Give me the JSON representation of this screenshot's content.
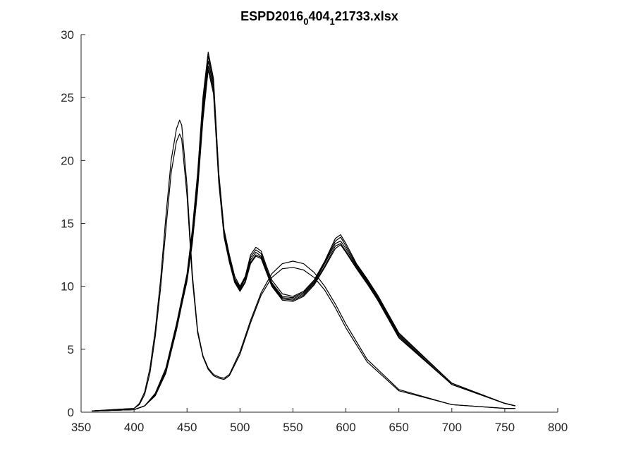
{
  "chart_data": {
    "type": "line",
    "title": {
      "parts": [
        {
          "text": "ESPD2016",
          "sub": false
        },
        {
          "text": "0",
          "sub": true
        },
        {
          "text": "404",
          "sub": false
        },
        {
          "text": "1",
          "sub": true
        },
        {
          "text": "21733.xlsx",
          "sub": false
        }
      ]
    },
    "xlim": [
      350,
      800
    ],
    "ylim": [
      0,
      30
    ],
    "xticks": [
      350,
      400,
      450,
      500,
      550,
      600,
      650,
      700,
      750,
      800
    ],
    "yticks": [
      0,
      5,
      10,
      15,
      20,
      25,
      30
    ],
    "xtick_labels": [
      "350",
      "400",
      "450",
      "500",
      "550",
      "600",
      "650",
      "700",
      "750",
      "800"
    ],
    "ytick_labels": [
      "0",
      "5",
      "10",
      "15",
      "20",
      "25",
      "30"
    ],
    "grid": false,
    "line_color": "#000000",
    "series": [
      {
        "x": [
          360,
          400,
          410,
          420,
          430,
          440,
          445,
          450,
          455,
          460,
          465,
          470,
          475,
          480,
          485,
          490,
          495,
          500,
          505,
          510,
          515,
          520,
          525,
          530,
          540,
          550,
          560,
          570,
          580,
          590,
          595,
          600,
          610,
          620,
          630,
          650,
          700,
          750,
          760
        ],
        "y": [
          0.1,
          0.2,
          0.5,
          1.5,
          3.5,
          7.0,
          9.0,
          11.0,
          14.5,
          19.0,
          25.0,
          28.6,
          26.5,
          19.0,
          14.5,
          12.5,
          10.8,
          10.0,
          10.8,
          12.5,
          13.1,
          12.8,
          11.6,
          10.5,
          9.4,
          9.2,
          9.6,
          10.5,
          12.0,
          13.8,
          14.1,
          13.4,
          11.8,
          10.6,
          9.3,
          6.3,
          2.3,
          0.7,
          0.5
        ]
      },
      {
        "x": [
          360,
          400,
          410,
          420,
          430,
          440,
          445,
          450,
          455,
          460,
          465,
          470,
          475,
          480,
          485,
          490,
          495,
          500,
          505,
          510,
          515,
          520,
          525,
          530,
          540,
          550,
          560,
          570,
          580,
          590,
          595,
          600,
          610,
          620,
          630,
          650,
          700,
          750,
          760
        ],
        "y": [
          0.1,
          0.2,
          0.5,
          1.4,
          3.3,
          6.8,
          8.8,
          10.8,
          14.0,
          18.5,
          24.5,
          28.3,
          26.2,
          18.8,
          14.3,
          12.3,
          10.6,
          9.9,
          10.7,
          12.3,
          12.9,
          12.6,
          11.4,
          10.3,
          9.2,
          9.1,
          9.5,
          10.4,
          11.9,
          13.6,
          13.9,
          13.2,
          11.7,
          10.5,
          9.2,
          6.2,
          2.3,
          0.7,
          0.5
        ]
      },
      {
        "x": [
          360,
          400,
          410,
          420,
          430,
          440,
          445,
          450,
          455,
          460,
          465,
          470,
          475,
          480,
          485,
          490,
          495,
          500,
          505,
          510,
          515,
          520,
          525,
          530,
          540,
          550,
          560,
          570,
          580,
          590,
          595,
          600,
          610,
          620,
          630,
          650,
          700,
          750,
          760
        ],
        "y": [
          0.1,
          0.2,
          0.5,
          1.4,
          3.3,
          6.7,
          8.7,
          10.6,
          13.8,
          18.2,
          24.0,
          27.9,
          25.9,
          18.6,
          14.2,
          12.2,
          10.5,
          9.8,
          10.6,
          12.1,
          12.7,
          12.4,
          11.3,
          10.2,
          9.1,
          9.0,
          9.4,
          10.3,
          11.8,
          13.4,
          13.6,
          13.0,
          11.6,
          10.4,
          9.1,
          6.1,
          2.2,
          0.7,
          0.5
        ]
      },
      {
        "x": [
          360,
          400,
          410,
          420,
          430,
          440,
          445,
          450,
          455,
          460,
          465,
          470,
          475,
          480,
          485,
          490,
          495,
          500,
          505,
          510,
          515,
          520,
          525,
          530,
          540,
          550,
          560,
          570,
          580,
          590,
          595,
          600,
          610,
          620,
          630,
          650,
          700,
          750,
          760
        ],
        "y": [
          0.1,
          0.2,
          0.5,
          1.4,
          3.2,
          6.6,
          8.6,
          10.5,
          13.6,
          17.9,
          23.6,
          27.5,
          25.6,
          18.4,
          14.0,
          12.0,
          10.4,
          9.7,
          10.4,
          11.9,
          12.5,
          12.3,
          11.2,
          10.1,
          9.0,
          8.9,
          9.3,
          10.2,
          11.6,
          13.2,
          13.4,
          12.8,
          11.5,
          10.3,
          9.0,
          6.0,
          2.2,
          0.7,
          0.5
        ]
      },
      {
        "x": [
          360,
          400,
          410,
          420,
          430,
          440,
          445,
          450,
          455,
          460,
          465,
          470,
          475,
          480,
          485,
          490,
          495,
          500,
          505,
          510,
          515,
          520,
          525,
          530,
          540,
          550,
          560,
          570,
          580,
          590,
          595,
          600,
          610,
          620,
          630,
          650,
          700,
          750,
          760
        ],
        "y": [
          0.1,
          0.2,
          0.5,
          1.3,
          3.1,
          6.5,
          8.5,
          10.4,
          13.4,
          17.6,
          23.2,
          27.2,
          25.3,
          18.2,
          13.9,
          11.9,
          10.3,
          9.6,
          10.3,
          11.8,
          12.4,
          12.2,
          11.1,
          10.0,
          8.9,
          8.8,
          9.2,
          10.1,
          11.5,
          13.0,
          13.3,
          12.7,
          11.4,
          10.2,
          8.9,
          5.9,
          2.2,
          0.7,
          0.5
        ]
      },
      {
        "x": [
          360,
          400,
          405,
          410,
          415,
          420,
          425,
          430,
          435,
          440,
          443,
          445,
          450,
          455,
          460,
          465,
          470,
          475,
          480,
          485,
          490,
          500,
          510,
          520,
          530,
          540,
          550,
          560,
          570,
          580,
          590,
          600,
          620,
          650,
          700,
          750,
          760
        ],
        "y": [
          0.1,
          0.3,
          0.7,
          1.6,
          3.5,
          6.5,
          10.5,
          15.5,
          20.0,
          22.5,
          23.2,
          22.8,
          18.0,
          11.0,
          6.5,
          4.5,
          3.5,
          3.0,
          2.8,
          2.7,
          3.0,
          4.8,
          7.3,
          9.5,
          11.0,
          11.8,
          12.0,
          11.8,
          11.1,
          10.0,
          8.6,
          7.0,
          4.2,
          1.8,
          0.6,
          0.3,
          0.3
        ]
      },
      {
        "x": [
          360,
          400,
          405,
          410,
          415,
          420,
          425,
          430,
          435,
          440,
          443,
          445,
          450,
          455,
          460,
          465,
          470,
          475,
          480,
          485,
          490,
          500,
          510,
          520,
          530,
          540,
          550,
          560,
          570,
          580,
          590,
          600,
          620,
          650,
          700,
          750,
          760
        ],
        "y": [
          0.1,
          0.3,
          0.6,
          1.4,
          3.1,
          6.0,
          9.8,
          14.5,
          19.0,
          21.5,
          22.1,
          21.7,
          17.2,
          10.6,
          6.3,
          4.4,
          3.4,
          2.9,
          2.7,
          2.6,
          2.9,
          4.6,
          7.1,
          9.3,
          10.7,
          11.4,
          11.5,
          11.3,
          10.7,
          9.7,
          8.3,
          6.7,
          4.0,
          1.7,
          0.6,
          0.3,
          0.3
        ]
      }
    ]
  }
}
